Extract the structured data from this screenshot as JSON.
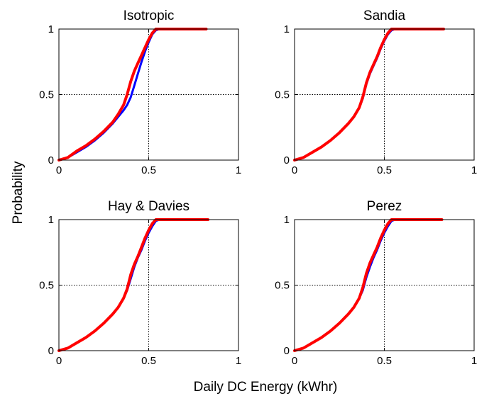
{
  "figure": {
    "xlabel": "Daily DC Energy (kWhr)",
    "ylabel": "Probability"
  },
  "colors": {
    "blue_series": "#0000ff",
    "red_series": "#ff0000",
    "axes": "#000000",
    "reference_lines": "#000000"
  },
  "chart_data": [
    {
      "type": "line",
      "title": "Isotropic",
      "xlim": [
        0,
        1
      ],
      "ylim": [
        0,
        1
      ],
      "xticks": [
        "0",
        "0.5",
        "1"
      ],
      "yticks": [
        "0",
        "0.5",
        "1"
      ],
      "reference_lines": {
        "x": 0.5,
        "y": 0.5,
        "style": "dotted"
      },
      "grid": false,
      "legend": "none",
      "series": [
        {
          "color": "blue",
          "x": [
            0.0,
            0.05,
            0.1,
            0.15,
            0.2,
            0.25,
            0.3,
            0.33,
            0.36,
            0.38,
            0.4,
            0.42,
            0.44,
            0.46,
            0.48,
            0.5,
            0.52,
            0.54,
            0.56,
            0.8
          ],
          "y": [
            0.0,
            0.02,
            0.06,
            0.1,
            0.15,
            0.21,
            0.28,
            0.33,
            0.38,
            0.42,
            0.48,
            0.57,
            0.66,
            0.75,
            0.83,
            0.9,
            0.96,
            0.99,
            1.0,
            1.0
          ]
        },
        {
          "color": "red",
          "x": [
            0.0,
            0.05,
            0.1,
            0.15,
            0.2,
            0.25,
            0.3,
            0.33,
            0.36,
            0.38,
            0.4,
            0.42,
            0.44,
            0.46,
            0.48,
            0.5,
            0.52,
            0.54,
            0.56,
            0.82
          ],
          "y": [
            0.0,
            0.02,
            0.07,
            0.11,
            0.16,
            0.22,
            0.29,
            0.35,
            0.42,
            0.5,
            0.6,
            0.68,
            0.74,
            0.8,
            0.86,
            0.92,
            0.97,
            1.0,
            1.0,
            1.0
          ]
        }
      ]
    },
    {
      "type": "line",
      "title": "Sandia",
      "xlim": [
        0,
        1
      ],
      "ylim": [
        0,
        1
      ],
      "xticks": [
        "0",
        "0.5",
        "1"
      ],
      "yticks": [
        "0",
        "0.5",
        "1"
      ],
      "reference_lines": {
        "x": 0.5,
        "y": 0.5,
        "style": "dotted"
      },
      "grid": false,
      "legend": "none",
      "series": [
        {
          "color": "blue",
          "x": [
            0.0,
            0.05,
            0.1,
            0.15,
            0.2,
            0.25,
            0.3,
            0.33,
            0.36,
            0.38,
            0.4,
            0.42,
            0.44,
            0.46,
            0.48,
            0.5,
            0.52,
            0.54,
            0.56,
            0.82
          ],
          "y": [
            0.0,
            0.02,
            0.06,
            0.1,
            0.15,
            0.21,
            0.28,
            0.33,
            0.4,
            0.47,
            0.58,
            0.66,
            0.72,
            0.78,
            0.85,
            0.91,
            0.96,
            0.99,
            1.0,
            1.0
          ]
        },
        {
          "color": "red",
          "x": [
            0.0,
            0.05,
            0.1,
            0.15,
            0.2,
            0.25,
            0.3,
            0.33,
            0.36,
            0.38,
            0.4,
            0.42,
            0.44,
            0.46,
            0.48,
            0.5,
            0.52,
            0.54,
            0.56,
            0.83
          ],
          "y": [
            0.0,
            0.02,
            0.06,
            0.1,
            0.15,
            0.21,
            0.28,
            0.33,
            0.4,
            0.48,
            0.59,
            0.67,
            0.73,
            0.79,
            0.86,
            0.92,
            0.97,
            1.0,
            1.0,
            1.0
          ]
        }
      ]
    },
    {
      "type": "line",
      "title": "Hay & Davies",
      "xlim": [
        0,
        1
      ],
      "ylim": [
        0,
        1
      ],
      "xticks": [
        "0",
        "0.5",
        "1"
      ],
      "yticks": [
        "0",
        "0.5",
        "1"
      ],
      "reference_lines": {
        "x": 0.5,
        "y": 0.5,
        "style": "dotted"
      },
      "grid": false,
      "legend": "none",
      "series": [
        {
          "color": "blue",
          "x": [
            0.0,
            0.05,
            0.1,
            0.15,
            0.2,
            0.25,
            0.3,
            0.33,
            0.36,
            0.38,
            0.4,
            0.42,
            0.44,
            0.46,
            0.48,
            0.5,
            0.52,
            0.54,
            0.56,
            0.82
          ],
          "y": [
            0.0,
            0.02,
            0.06,
            0.1,
            0.15,
            0.21,
            0.28,
            0.33,
            0.4,
            0.46,
            0.55,
            0.64,
            0.71,
            0.77,
            0.84,
            0.9,
            0.95,
            0.99,
            1.0,
            1.0
          ]
        },
        {
          "color": "red",
          "x": [
            0.0,
            0.05,
            0.1,
            0.15,
            0.2,
            0.25,
            0.3,
            0.33,
            0.36,
            0.38,
            0.4,
            0.42,
            0.44,
            0.46,
            0.48,
            0.5,
            0.52,
            0.54,
            0.56,
            0.83
          ],
          "y": [
            0.0,
            0.02,
            0.06,
            0.1,
            0.15,
            0.21,
            0.28,
            0.33,
            0.4,
            0.47,
            0.58,
            0.66,
            0.72,
            0.79,
            0.86,
            0.92,
            0.97,
            1.0,
            1.0,
            1.0
          ]
        }
      ]
    },
    {
      "type": "line",
      "title": "Perez",
      "xlim": [
        0,
        1
      ],
      "ylim": [
        0,
        1
      ],
      "xticks": [
        "0",
        "0.5",
        "1"
      ],
      "yticks": [
        "0",
        "0.5",
        "1"
      ],
      "reference_lines": {
        "x": 0.5,
        "y": 0.5,
        "style": "dotted"
      },
      "grid": false,
      "legend": "none",
      "series": [
        {
          "color": "blue",
          "x": [
            0.0,
            0.05,
            0.1,
            0.15,
            0.2,
            0.25,
            0.3,
            0.33,
            0.36,
            0.38,
            0.4,
            0.42,
            0.44,
            0.46,
            0.48,
            0.5,
            0.52,
            0.54,
            0.56,
            0.82
          ],
          "y": [
            0.0,
            0.02,
            0.06,
            0.1,
            0.15,
            0.21,
            0.28,
            0.33,
            0.4,
            0.46,
            0.56,
            0.64,
            0.71,
            0.77,
            0.84,
            0.9,
            0.95,
            0.99,
            1.0,
            1.0
          ]
        },
        {
          "color": "red",
          "x": [
            0.0,
            0.05,
            0.1,
            0.15,
            0.2,
            0.25,
            0.3,
            0.33,
            0.36,
            0.38,
            0.4,
            0.42,
            0.44,
            0.46,
            0.48,
            0.5,
            0.52,
            0.54,
            0.56,
            0.82
          ],
          "y": [
            0.0,
            0.02,
            0.06,
            0.1,
            0.15,
            0.21,
            0.28,
            0.33,
            0.4,
            0.48,
            0.59,
            0.67,
            0.73,
            0.79,
            0.86,
            0.92,
            0.97,
            1.0,
            1.0,
            1.0
          ]
        }
      ]
    }
  ]
}
